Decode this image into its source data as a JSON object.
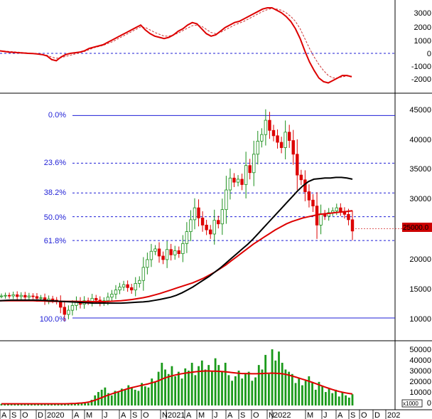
{
  "chart_data": {
    "type": "candlestick",
    "x_axis": {
      "labels": [
        "A",
        "S",
        "O",
        "D",
        "2020",
        "A",
        "M",
        "J",
        "A",
        "S",
        "O",
        "N",
        "2021",
        "A",
        "M",
        "J",
        "A",
        "S",
        "O",
        "N",
        "2022",
        "M",
        "J",
        "A",
        "S",
        "O",
        "D",
        "202"
      ]
    },
    "price_panel": {
      "ticks": [
        "45000",
        "40000",
        "35000",
        "30000",
        "25000",
        "20000",
        "15000",
        "10000"
      ],
      "ylim": [
        8000,
        46000
      ],
      "last_price_label": "25000.0",
      "last_price": 25000,
      "fib_levels": [
        {
          "label": "0.0%",
          "value": 44000
        },
        {
          "label": "23.6%",
          "value": 36000
        },
        {
          "label": "38.2%",
          "value": 31000
        },
        {
          "label": "50.0%",
          "value": 27000
        },
        {
          "label": "61.8%",
          "value": 23000
        },
        {
          "label": "100.0%",
          "value": 10000
        }
      ],
      "candles_close": [
        13700,
        13800,
        13700,
        13900,
        13600,
        13800,
        13500,
        13700,
        13600,
        13300,
        13400,
        12900,
        13200,
        13000,
        12800,
        11800,
        10600,
        11300,
        12100,
        12800,
        12300,
        12900,
        12700,
        13300,
        13000,
        12600,
        12900,
        13500,
        14000,
        14700,
        15200,
        15600,
        15100,
        14700,
        15800,
        16300,
        18500,
        19800,
        21200,
        21600,
        20400,
        19800,
        21500,
        20600,
        21300,
        20800,
        22500,
        24500,
        26500,
        28500,
        26800,
        25600,
        24800,
        24100,
        26400,
        25800,
        28200,
        31500,
        33500,
        32800,
        33300,
        32400,
        35600,
        34400,
        37500,
        39700,
        40800,
        43200,
        41500,
        40600,
        39500,
        38600,
        41200,
        39800,
        37500,
        34000,
        33200,
        31200,
        29800,
        28800,
        25600,
        27500,
        27100,
        27700,
        28000,
        28500,
        27900,
        27400,
        26500,
        24600
      ],
      "ma_short": [
        12900,
        12950,
        13000,
        13000,
        13000,
        13000,
        13000,
        13000,
        12950,
        12900,
        12850,
        12800,
        12750,
        12700,
        12650,
        12600,
        12550,
        12500,
        12500,
        12500,
        12500,
        12500,
        12500,
        12550,
        12600,
        12650,
        12700,
        12800,
        12950,
        13100,
        13300,
        13500,
        13800,
        14200,
        14700,
        15200,
        15800,
        16400,
        17000,
        17700,
        18400,
        19200,
        20000,
        20800,
        21600,
        22400,
        23300,
        24300,
        25300,
        26300,
        27300,
        28300,
        29300,
        30300,
        31300,
        32200,
        32900,
        33300,
        33400,
        33500,
        33500,
        33600,
        33600,
        33500,
        33300
      ],
      "ma_long": [
        12900,
        12900,
        12900,
        12900,
        12900,
        12900,
        12900,
        12850,
        12850,
        12800,
        12800,
        12800,
        12800,
        12800,
        12800,
        12750,
        12750,
        12750,
        12750,
        12750,
        12800,
        12850,
        12900,
        13000,
        13100,
        13250,
        13400,
        13600,
        13850,
        14100,
        14400,
        14700,
        15000,
        15300,
        15600,
        15900,
        16300,
        16700,
        17200,
        17700,
        18300,
        18900,
        19600,
        20300,
        21000,
        21700,
        22400,
        23000,
        23600,
        24200,
        24800,
        25300,
        25800,
        26200,
        26500,
        26800,
        27000,
        27200,
        27400,
        27500,
        27600,
        27700,
        27800,
        27900,
        28000
      ]
    },
    "oscillator_panel": {
      "ticks": [
        "3000",
        "2000",
        "1000",
        "0",
        "-1000",
        "-2000"
      ],
      "ylim": [
        -2800,
        3800
      ],
      "line": [
        200,
        150,
        100,
        80,
        50,
        30,
        0,
        -20,
        -50,
        -100,
        -200,
        -500,
        -600,
        -300,
        -100,
        0,
        50,
        100,
        200,
        400,
        500,
        600,
        700,
        900,
        1100,
        1300,
        1500,
        1700,
        1900,
        2100,
        2300,
        1900,
        1600,
        1400,
        1300,
        1200,
        1300,
        1500,
        1800,
        2000,
        2300,
        2500,
        2400,
        2000,
        1600,
        1400,
        1500,
        1800,
        2100,
        2300,
        2500,
        2600,
        2800,
        3000,
        3200,
        3400,
        3600,
        3700,
        3700,
        3500,
        3300,
        3000,
        2600,
        2000,
        1200,
        200,
        -700,
        -1400,
        -2000,
        -2300,
        -2400,
        -2200,
        -2000,
        -1800,
        -1800,
        -1900
      ],
      "signal": [
        200,
        180,
        150,
        120,
        90,
        60,
        30,
        0,
        -30,
        -80,
        -150,
        -300,
        -400,
        -350,
        -250,
        -150,
        -50,
        50,
        150,
        300,
        450,
        550,
        650,
        800,
        950,
        1150,
        1350,
        1550,
        1750,
        1950,
        2150,
        2100,
        1900,
        1700,
        1550,
        1400,
        1400,
        1500,
        1650,
        1850,
        2050,
        2250,
        2300,
        2200,
        1950,
        1700,
        1600,
        1700,
        1900,
        2100,
        2300,
        2450,
        2600,
        2800,
        3000,
        3200,
        3400,
        3550,
        3650,
        3600,
        3500,
        3300,
        3000,
        2600,
        2000,
        1200,
        400,
        -300,
        -900,
        -1400,
        -1800,
        -2000,
        -2000,
        -1900,
        -1850,
        -1850
      ]
    },
    "volume_panel": {
      "ticks": [
        "50000",
        "40000",
        "30000",
        "20000",
        "10000",
        "0"
      ],
      "unit_label": "x1000",
      "ylim": [
        0,
        52000
      ],
      "values": [
        1500,
        1300,
        1600,
        1200,
        1400,
        1700,
        1500,
        1300,
        1800,
        1600,
        1400,
        1200,
        1900,
        1700,
        1600,
        1400,
        1500,
        1800,
        1600,
        1500,
        1700,
        1400,
        1600,
        1800,
        2100,
        1900,
        2200,
        5000,
        9000,
        12000,
        14000,
        16000,
        11000,
        9000,
        13000,
        12000,
        15000,
        14000,
        18000,
        16000,
        14000,
        13000,
        20000,
        17000,
        16000,
        24000,
        21000,
        30000,
        38000,
        32000,
        28000,
        35000,
        26000,
        30000,
        24000,
        33000,
        31000,
        38000,
        27000,
        35000,
        40000,
        32000,
        36000,
        30000,
        42000,
        36000,
        30000,
        38000,
        27000,
        22000,
        26000,
        31000,
        24000,
        28000,
        30000,
        22000,
        25000,
        36000,
        32000,
        45000,
        28000,
        50000,
        40000,
        48000,
        38000,
        32000,
        30000,
        28000,
        20000,
        24000,
        18000,
        22000,
        26000,
        20000,
        14000,
        21000,
        17000,
        12000,
        15000,
        11000,
        14000,
        8000,
        12000,
        9000,
        7000,
        10000
      ],
      "ma": [
        1500,
        1500,
        1500,
        1500,
        1500,
        1500,
        1500,
        1500,
        1500,
        1500,
        1500,
        1500,
        1500,
        1500,
        1500,
        1500,
        1500,
        1500,
        1500,
        1500,
        1600,
        1700,
        1800,
        2000,
        2200,
        2500,
        3000,
        3800,
        4700,
        5800,
        7000,
        8200,
        9300,
        10300,
        11300,
        12200,
        13200,
        14200,
        15100,
        15900,
        16600,
        17300,
        18000,
        18600,
        19300,
        20200,
        21000,
        22000,
        23400,
        24600,
        25500,
        26400,
        27100,
        27800,
        28300,
        28800,
        29200,
        29600,
        30000,
        30300,
        30600,
        30700,
        30700,
        30600,
        30500,
        30400,
        30200,
        30000,
        29700,
        29300,
        28900,
        28600,
        28400,
        28400,
        28300,
        28200,
        28200,
        28300,
        28400,
        28600,
        28700,
        28800,
        28700,
        28500,
        28200,
        27700,
        27000,
        26200,
        25300,
        24400,
        23500,
        22600,
        21600,
        20600,
        19500,
        18400,
        17300,
        16200,
        15200,
        14200,
        13300,
        12500,
        11800,
        11200,
        10700,
        10300
      ]
    }
  }
}
